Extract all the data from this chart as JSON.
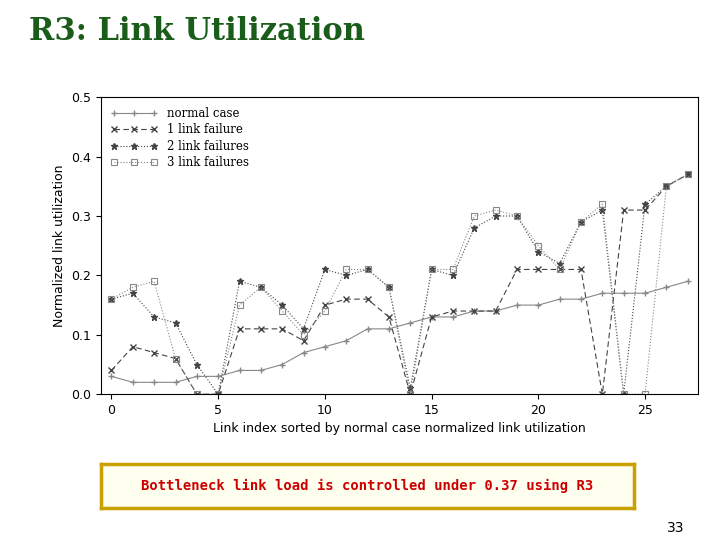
{
  "title": "R3: Link Utilization",
  "title_color": "#1a5c1a",
  "xlabel": "Link index sorted by normal case normalized link utilization",
  "ylabel": "Normalized link utilization",
  "xlim": [
    -0.5,
    27.5
  ],
  "ylim": [
    0,
    0.5
  ],
  "xticks": [
    0,
    5,
    10,
    15,
    20,
    25
  ],
  "yticks": [
    0,
    0.1,
    0.2,
    0.3,
    0.4,
    0.5
  ],
  "annotation_text": "Bottleneck link load is controlled under 0.37 using R3",
  "annotation_color": "#cc0000",
  "annotation_box_edge": "#c8a000",
  "annotation_box_fill": "#fffff0",
  "page_number": "33",
  "normal_case": {
    "x": [
      0,
      1,
      2,
      3,
      4,
      5,
      6,
      7,
      8,
      9,
      10,
      11,
      12,
      13,
      14,
      15,
      16,
      17,
      18,
      19,
      20,
      21,
      22,
      23,
      24,
      25,
      26,
      27
    ],
    "y": [
      0.03,
      0.02,
      0.02,
      0.02,
      0.03,
      0.03,
      0.04,
      0.04,
      0.05,
      0.07,
      0.08,
      0.09,
      0.11,
      0.11,
      0.12,
      0.13,
      0.13,
      0.14,
      0.14,
      0.15,
      0.15,
      0.16,
      0.16,
      0.17,
      0.17,
      0.17,
      0.18,
      0.19
    ],
    "color": "#888888",
    "linestyle": "-",
    "marker": "+"
  },
  "one_link_failure": {
    "x": [
      0,
      1,
      2,
      3,
      4,
      5,
      6,
      7,
      8,
      9,
      10,
      11,
      12,
      13,
      14,
      15,
      16,
      17,
      18,
      19,
      20,
      21,
      22,
      23,
      24,
      25,
      26,
      27
    ],
    "y": [
      0.04,
      0.08,
      0.07,
      0.06,
      0.0,
      0.0,
      0.11,
      0.11,
      0.11,
      0.09,
      0.15,
      0.16,
      0.16,
      0.13,
      0.0,
      0.13,
      0.14,
      0.14,
      0.14,
      0.21,
      0.21,
      0.21,
      0.21,
      0.0,
      0.31,
      0.31,
      0.35,
      0.37
    ],
    "color": "#444444",
    "linestyle": "--",
    "marker": "x"
  },
  "two_link_failures": {
    "x": [
      0,
      1,
      2,
      3,
      4,
      5,
      6,
      7,
      8,
      9,
      10,
      11,
      12,
      13,
      14,
      15,
      16,
      17,
      18,
      19,
      20,
      21,
      22,
      23,
      24,
      25,
      26,
      27
    ],
    "y": [
      0.16,
      0.17,
      0.13,
      0.12,
      0.05,
      0.0,
      0.19,
      0.18,
      0.15,
      0.11,
      0.21,
      0.2,
      0.21,
      0.18,
      0.01,
      0.21,
      0.2,
      0.28,
      0.3,
      0.3,
      0.24,
      0.22,
      0.29,
      0.31,
      0.0,
      0.32,
      0.35,
      0.37
    ],
    "color": "#444444",
    "linestyle": ":",
    "marker": "*"
  },
  "three_link_failures": {
    "x": [
      0,
      1,
      2,
      3,
      4,
      5,
      6,
      7,
      8,
      9,
      10,
      11,
      12,
      13,
      14,
      15,
      16,
      17,
      18,
      19,
      20,
      21,
      22,
      23,
      24,
      25,
      26,
      27
    ],
    "y": [
      0.16,
      0.18,
      0.19,
      0.06,
      0.0,
      0.0,
      0.15,
      0.18,
      0.14,
      0.1,
      0.14,
      0.21,
      0.21,
      0.18,
      0.0,
      0.21,
      0.21,
      0.3,
      0.31,
      0.3,
      0.25,
      0.21,
      0.29,
      0.32,
      0.0,
      0.0,
      0.35,
      0.37
    ],
    "color": "#888888",
    "linestyle": ":",
    "marker": "s"
  }
}
